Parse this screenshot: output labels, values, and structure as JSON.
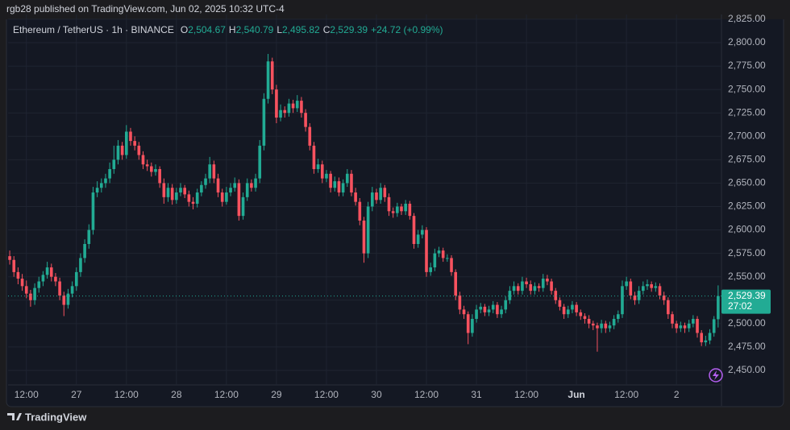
{
  "header": {
    "publisher": "rgb28 published on TradingView.com, Jun 02, 2025 10:32 UTC-4"
  },
  "chart_data": {
    "type": "candlestick",
    "symbol": "Ethereum / TetherUS · 1h · BINANCE",
    "ohlc_legend": [
      {
        "key": "O",
        "value": "2,504.67"
      },
      {
        "key": "H",
        "value": "2,540.79"
      },
      {
        "key": "L",
        "value": "2,495.82"
      },
      {
        "key": "C",
        "value": "2,529.39"
      }
    ],
    "change": "+24.72 (+0.99%)",
    "up_color": "#22ab94",
    "down_color": "#f7525f",
    "open": [
      2572,
      2568,
      2555,
      2548,
      2540,
      2532,
      2525,
      2538,
      2545,
      2552,
      2560,
      2550,
      2545,
      2530,
      2520,
      2532,
      2540,
      2555,
      2570,
      2585,
      2600,
      2640,
      2645,
      2650,
      2655,
      2665,
      2675,
      2690,
      2680,
      2705,
      2695,
      2690,
      2680,
      2670,
      2668,
      2662,
      2665,
      2650,
      2635,
      2645,
      2632,
      2640,
      2645,
      2638,
      2630,
      2628,
      2640,
      2648,
      2655,
      2670,
      2655,
      2640,
      2630,
      2640,
      2645,
      2650,
      2615,
      2635,
      2650,
      2645,
      2655,
      2690,
      2740,
      2780,
      2750,
      2720,
      2728,
      2725,
      2735,
      2730,
      2738,
      2725,
      2710,
      2690,
      2665,
      2670,
      2655,
      2660,
      2645,
      2652,
      2640,
      2650,
      2660,
      2640,
      2630,
      2610,
      2575,
      2625,
      2640,
      2632,
      2645,
      2635,
      2620,
      2618,
      2625,
      2620,
      2628,
      2615,
      2585,
      2595,
      2600,
      2555,
      2560,
      2575,
      2578,
      2570,
      2570,
      2555,
      2530,
      2515,
      2510,
      2490,
      2505,
      2515,
      2518,
      2512,
      2515,
      2520,
      2510,
      2515,
      2525,
      2535,
      2540,
      2535,
      2545,
      2542,
      2535,
      2540,
      2538,
      2548,
      2545,
      2535,
      2525,
      2518,
      2510,
      2515,
      2520,
      2512,
      2508,
      2505,
      2500,
      2498,
      2495,
      2500,
      2495,
      2498,
      2505,
      2510,
      2540,
      2545,
      2530,
      2525,
      2535,
      2540,
      2542,
      2538,
      2540,
      2530,
      2525,
      2510,
      2500,
      2495,
      2498,
      2495,
      2500,
      2505,
      2490,
      2480,
      2482,
      2490,
      2504.67
    ],
    "high": [
      2578,
      2572,
      2560,
      2553,
      2546,
      2536,
      2543,
      2550,
      2556,
      2566,
      2564,
      2554,
      2549,
      2534,
      2537,
      2545,
      2560,
      2575,
      2590,
      2606,
      2646,
      2652,
      2655,
      2660,
      2672,
      2690,
      2696,
      2694,
      2712,
      2709,
      2700,
      2694,
      2684,
      2675,
      2672,
      2670,
      2668,
      2655,
      2650,
      2649,
      2645,
      2650,
      2648,
      2642,
      2635,
      2644,
      2652,
      2660,
      2678,
      2674,
      2660,
      2644,
      2646,
      2650,
      2656,
      2654,
      2640,
      2655,
      2654,
      2660,
      2696,
      2746,
      2788,
      2784,
      2755,
      2734,
      2732,
      2740,
      2739,
      2744,
      2742,
      2729,
      2714,
      2694,
      2676,
      2674,
      2664,
      2663,
      2657,
      2656,
      2654,
      2665,
      2664,
      2645,
      2634,
      2614,
      2630,
      2646,
      2644,
      2650,
      2648,
      2639,
      2624,
      2629,
      2628,
      2632,
      2631,
      2618,
      2600,
      2605,
      2603,
      2565,
      2580,
      2582,
      2581,
      2574,
      2573,
      2558,
      2534,
      2519,
      2513,
      2510,
      2520,
      2522,
      2521,
      2519,
      2524,
      2523,
      2519,
      2529,
      2540,
      2545,
      2543,
      2550,
      2549,
      2546,
      2544,
      2543,
      2553,
      2552,
      2548,
      2538,
      2528,
      2521,
      2519,
      2524,
      2523,
      2515,
      2511,
      2509,
      2503,
      2501,
      2504,
      2503,
      2502,
      2509,
      2514,
      2546,
      2550,
      2548,
      2534,
      2540,
      2545,
      2547,
      2545,
      2544,
      2543,
      2534,
      2528,
      2513,
      2503,
      2502,
      2501,
      2504,
      2509,
      2508,
      2493,
      2487,
      2494,
      2508,
      2540.79
    ],
    "low": [
      2563,
      2550,
      2542,
      2535,
      2527,
      2518,
      2520,
      2533,
      2540,
      2548,
      2545,
      2540,
      2525,
      2508,
      2516,
      2528,
      2535,
      2550,
      2565,
      2580,
      2595,
      2635,
      2640,
      2645,
      2650,
      2660,
      2670,
      2675,
      2676,
      2690,
      2685,
      2675,
      2665,
      2663,
      2657,
      2658,
      2645,
      2628,
      2630,
      2627,
      2628,
      2636,
      2634,
      2625,
      2622,
      2624,
      2636,
      2644,
      2650,
      2650,
      2635,
      2625,
      2627,
      2636,
      2641,
      2610,
      2611,
      2631,
      2641,
      2641,
      2650,
      2685,
      2735,
      2745,
      2714,
      2716,
      2720,
      2721,
      2725,
      2726,
      2720,
      2705,
      2685,
      2660,
      2661,
      2650,
      2651,
      2640,
      2641,
      2636,
      2636,
      2646,
      2636,
      2626,
      2605,
      2565,
      2570,
      2620,
      2628,
      2628,
      2630,
      2615,
      2613,
      2614,
      2616,
      2616,
      2611,
      2580,
      2581,
      2591,
      2550,
      2551,
      2556,
      2571,
      2566,
      2566,
      2551,
      2525,
      2510,
      2505,
      2478,
      2486,
      2501,
      2511,
      2508,
      2508,
      2511,
      2506,
      2506,
      2511,
      2521,
      2531,
      2531,
      2531,
      2538,
      2531,
      2531,
      2534,
      2534,
      2541,
      2531,
      2521,
      2514,
      2505,
      2506,
      2511,
      2508,
      2504,
      2500,
      2495,
      2493,
      2470,
      2490,
      2490,
      2491,
      2494,
      2501,
      2506,
      2536,
      2526,
      2520,
      2521,
      2531,
      2536,
      2534,
      2534,
      2526,
      2520,
      2505,
      2495,
      2490,
      2491,
      2490,
      2491,
      2496,
      2485,
      2476,
      2476,
      2478,
      2486,
      2495.82
    ],
    "close": [
      2568,
      2555,
      2548,
      2540,
      2532,
      2525,
      2538,
      2545,
      2552,
      2560,
      2550,
      2545,
      2530,
      2520,
      2532,
      2540,
      2555,
      2570,
      2585,
      2600,
      2640,
      2645,
      2650,
      2655,
      2665,
      2675,
      2690,
      2680,
      2705,
      2695,
      2690,
      2680,
      2670,
      2668,
      2662,
      2665,
      2650,
      2635,
      2645,
      2632,
      2640,
      2645,
      2638,
      2630,
      2628,
      2640,
      2648,
      2655,
      2670,
      2655,
      2640,
      2630,
      2640,
      2645,
      2650,
      2615,
      2635,
      2650,
      2645,
      2655,
      2690,
      2740,
      2780,
      2750,
      2720,
      2728,
      2725,
      2735,
      2730,
      2738,
      2725,
      2710,
      2690,
      2665,
      2670,
      2655,
      2660,
      2645,
      2652,
      2640,
      2650,
      2660,
      2640,
      2630,
      2610,
      2575,
      2625,
      2640,
      2632,
      2645,
      2635,
      2620,
      2618,
      2625,
      2620,
      2628,
      2615,
      2585,
      2595,
      2600,
      2555,
      2560,
      2575,
      2578,
      2570,
      2570,
      2555,
      2530,
      2515,
      2510,
      2490,
      2505,
      2515,
      2518,
      2512,
      2515,
      2520,
      2510,
      2515,
      2525,
      2535,
      2540,
      2535,
      2545,
      2542,
      2535,
      2540,
      2538,
      2548,
      2545,
      2535,
      2525,
      2518,
      2510,
      2515,
      2520,
      2512,
      2508,
      2505,
      2500,
      2498,
      2495,
      2500,
      2495,
      2498,
      2505,
      2510,
      2540,
      2545,
      2530,
      2525,
      2535,
      2540,
      2542,
      2538,
      2540,
      2530,
      2525,
      2510,
      2500,
      2495,
      2498,
      2495,
      2500,
      2505,
      2490,
      2480,
      2482,
      2490,
      2504.67,
      2529.39
    ],
    "xlim": [
      -0.4,
      170.8
    ],
    "xticks": [
      {
        "value": 4,
        "label": "12:00"
      },
      {
        "value": 16,
        "label": "27"
      },
      {
        "value": 28,
        "label": "12:00"
      },
      {
        "value": 40,
        "label": "28"
      },
      {
        "value": 52,
        "label": "12:00"
      },
      {
        "value": 64,
        "label": "29"
      },
      {
        "value": 76,
        "label": "12:00"
      },
      {
        "value": 88,
        "label": "30"
      },
      {
        "value": 100,
        "label": "12:00"
      },
      {
        "value": 112,
        "label": "31"
      },
      {
        "value": 124,
        "label": "12:00"
      },
      {
        "value": 136,
        "label": "Jun"
      },
      {
        "value": 148,
        "label": "12:00"
      },
      {
        "value": 160,
        "label": "2"
      }
    ],
    "ylim": [
      2434.5,
      2830.1
    ],
    "yticks": [
      {
        "value": 2450,
        "label": "2,450.00"
      },
      {
        "value": 2475,
        "label": "2,475.00"
      },
      {
        "value": 2500,
        "label": "2,500.00"
      },
      {
        "value": 2525,
        "label": "2,525.00"
      },
      {
        "value": 2550,
        "label": "2,550.00"
      },
      {
        "value": 2575,
        "label": "2,575.00"
      },
      {
        "value": 2600,
        "label": "2,600.00"
      },
      {
        "value": 2625,
        "label": "2,625.00"
      },
      {
        "value": 2650,
        "label": "2,650.00"
      },
      {
        "value": 2675,
        "label": "2,675.00"
      },
      {
        "value": 2700,
        "label": "2,700.00"
      },
      {
        "value": 2725,
        "label": "2,725.00"
      },
      {
        "value": 2750,
        "label": "2,750.00"
      },
      {
        "value": 2775,
        "label": "2,775.00"
      },
      {
        "value": 2800,
        "label": "2,800.00"
      },
      {
        "value": 2825,
        "label": "2,825.00"
      }
    ],
    "grid": true,
    "last_price_label": "2,529.39",
    "countdown": "27:02"
  },
  "footer": {
    "brand": "TradingView"
  }
}
